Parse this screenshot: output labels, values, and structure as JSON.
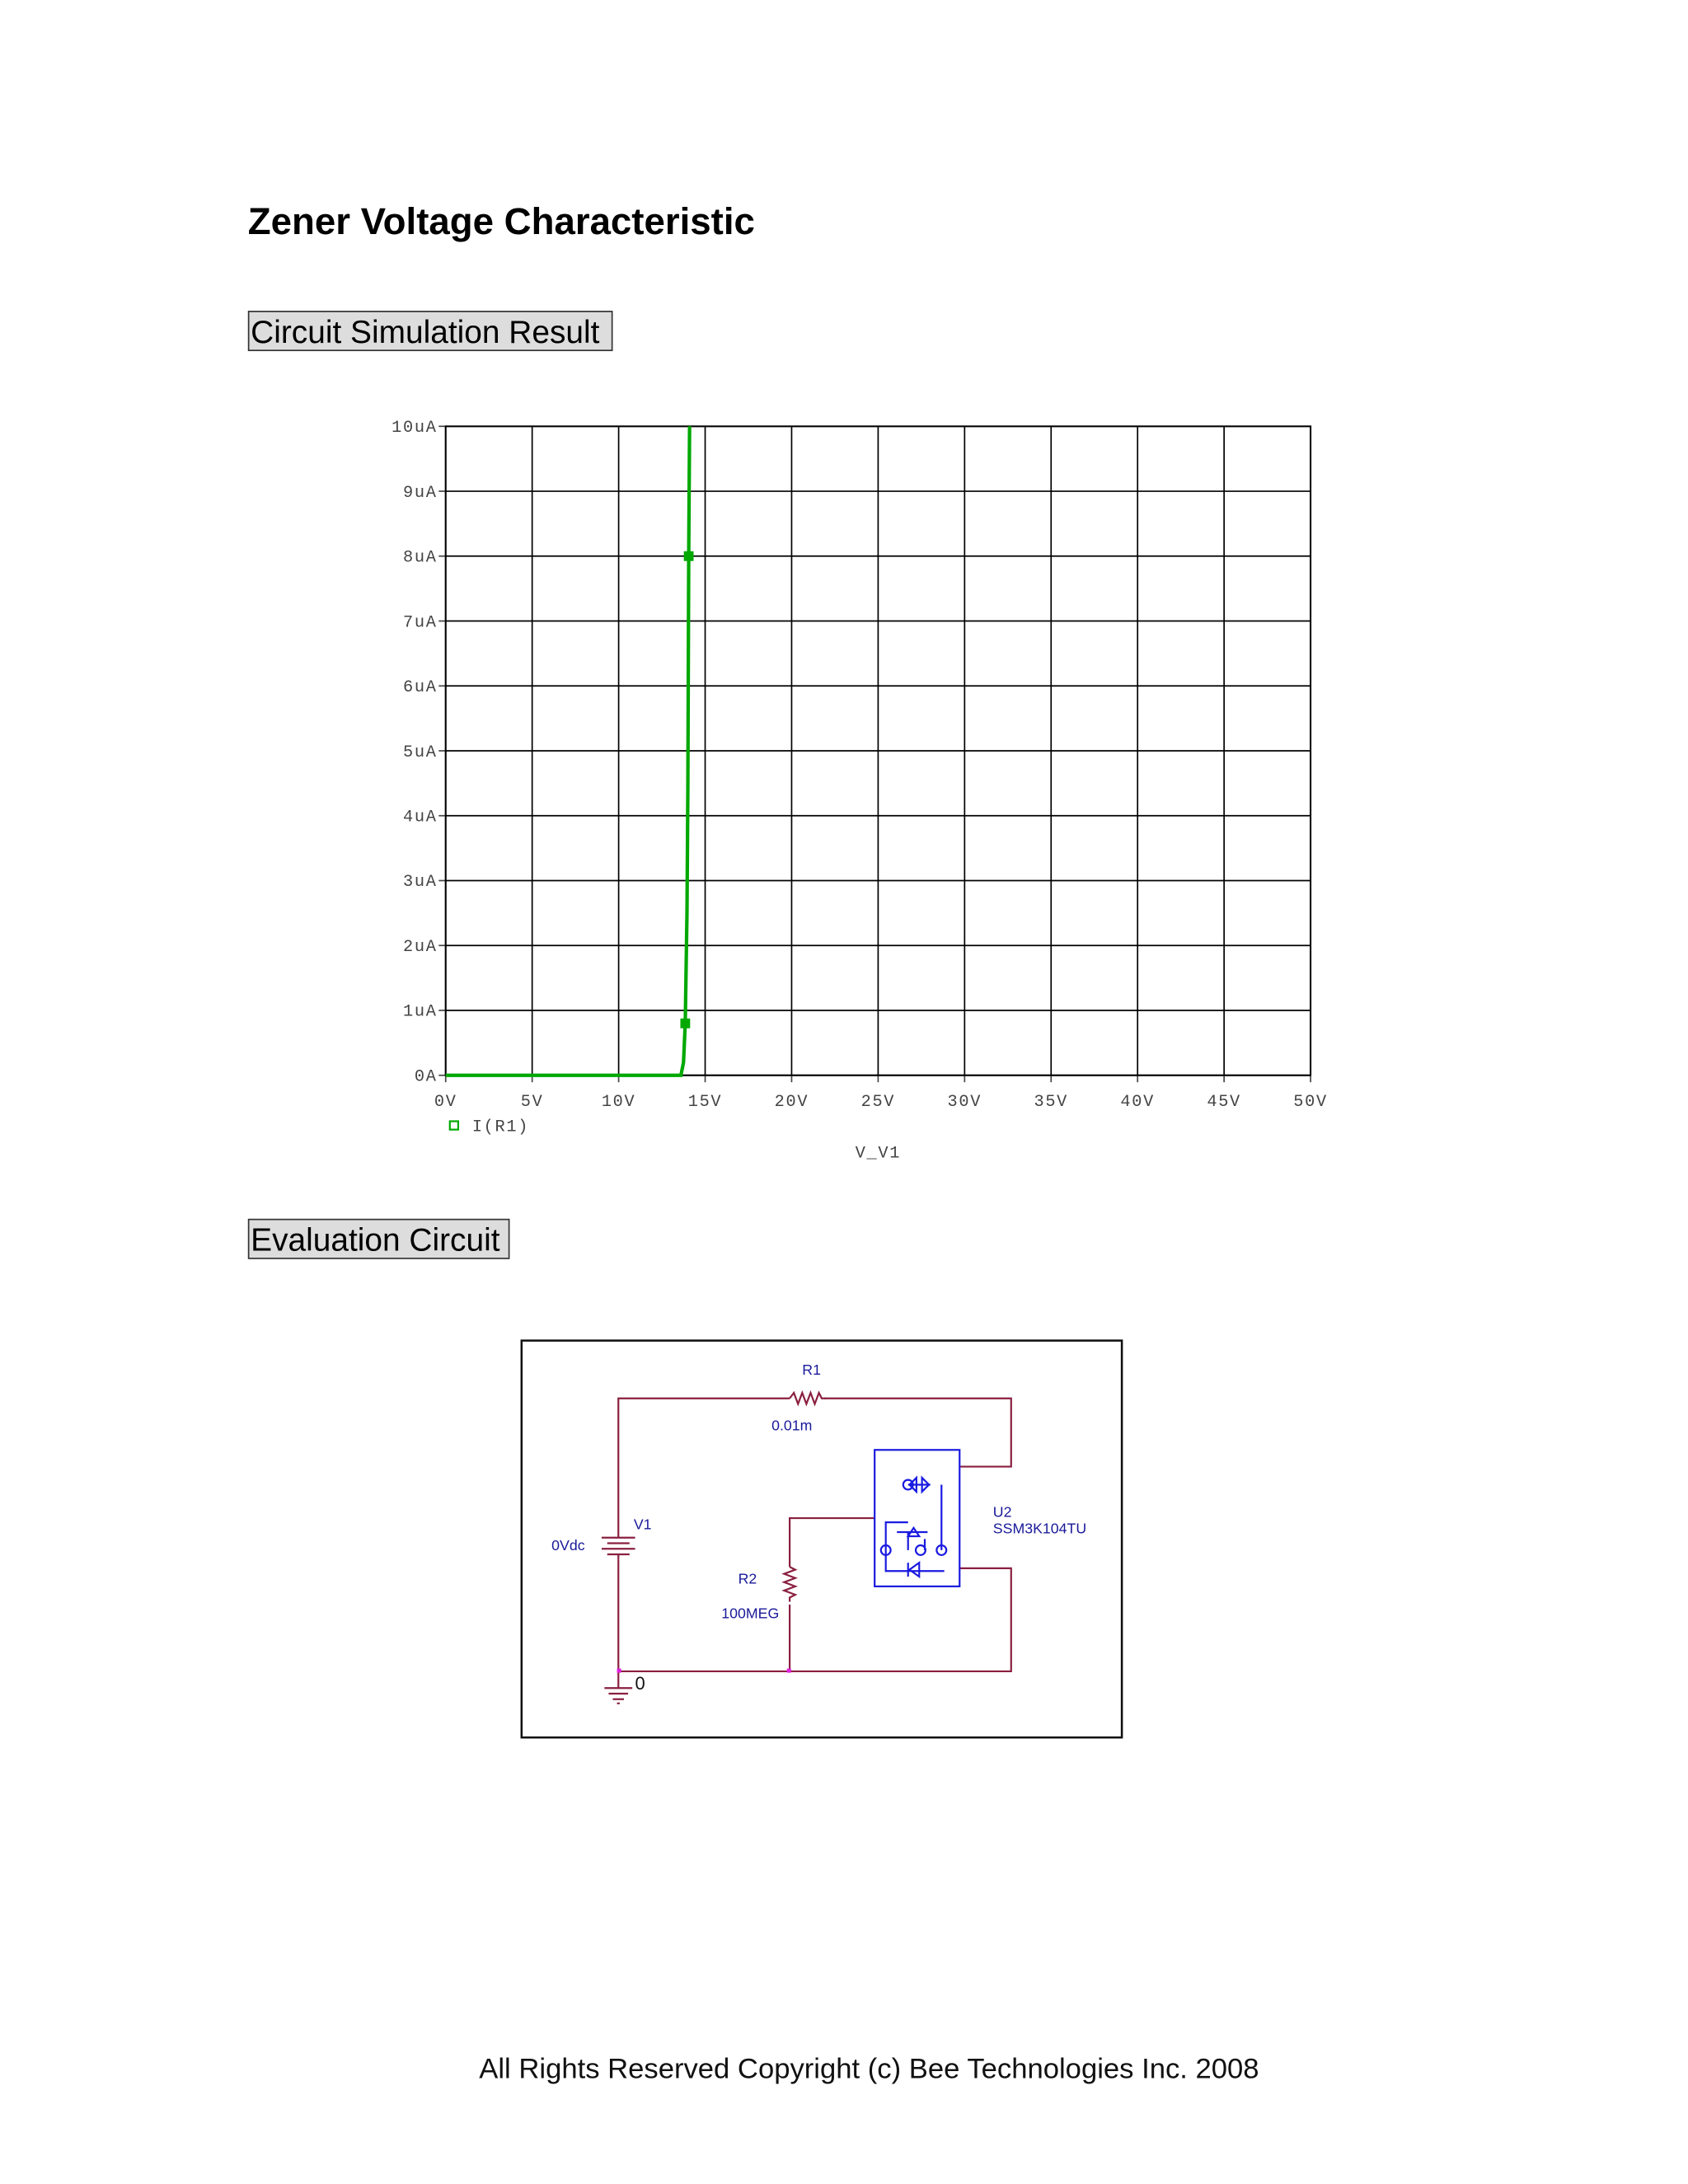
{
  "title": "Zener Voltage Characteristic",
  "sections": [
    "Circuit Simulation Result",
    "Evaluation Circuit"
  ],
  "chart_data": {
    "type": "line",
    "x_label": "V_V1",
    "x": [
      0,
      13.6,
      13.75,
      13.85,
      13.95,
      14.0,
      14.05,
      14.1
    ],
    "series": [
      {
        "name": "I(R1)",
        "color": "#00a800",
        "values": [
          0,
          0,
          0.2,
          0.8,
          2.5,
          4.4,
          8.0,
          10
        ]
      }
    ],
    "xlim": [
      0,
      50
    ],
    "ylim": [
      0,
      10
    ],
    "xticks": [
      {
        "value": 0,
        "label": "0V"
      },
      {
        "value": 5,
        "label": "5V"
      },
      {
        "value": 10,
        "label": "10V"
      },
      {
        "value": 15,
        "label": "15V"
      },
      {
        "value": 20,
        "label": "20V"
      },
      {
        "value": 25,
        "label": "25V"
      },
      {
        "value": 30,
        "label": "30V"
      },
      {
        "value": 35,
        "label": "35V"
      },
      {
        "value": 40,
        "label": "40V"
      },
      {
        "value": 45,
        "label": "45V"
      },
      {
        "value": 50,
        "label": "50V"
      }
    ],
    "yticks": [
      {
        "value": 0,
        "label": "0A"
      },
      {
        "value": 1,
        "label": "1uA"
      },
      {
        "value": 2,
        "label": "2uA"
      },
      {
        "value": 3,
        "label": "3uA"
      },
      {
        "value": 4,
        "label": "4uA"
      },
      {
        "value": 5,
        "label": "5uA"
      },
      {
        "value": 6,
        "label": "6uA"
      },
      {
        "value": 7,
        "label": "7uA"
      },
      {
        "value": 8,
        "label": "8uA"
      },
      {
        "value": 9,
        "label": "9uA"
      },
      {
        "value": 10,
        "label": "10uA"
      }
    ],
    "grid": true,
    "legend": "bottom-left"
  },
  "circuit": {
    "components": [
      {
        "ref": "R1",
        "value": "0.01m"
      },
      {
        "ref": "R2",
        "value": "100MEG"
      },
      {
        "ref": "V1",
        "value": "0Vdc"
      },
      {
        "ref": "U2",
        "value": "SSM3K104TU"
      }
    ],
    "ground_label": "0"
  },
  "footer": "All Rights Reserved Copyright (c) Bee Technologies Inc. 2008"
}
